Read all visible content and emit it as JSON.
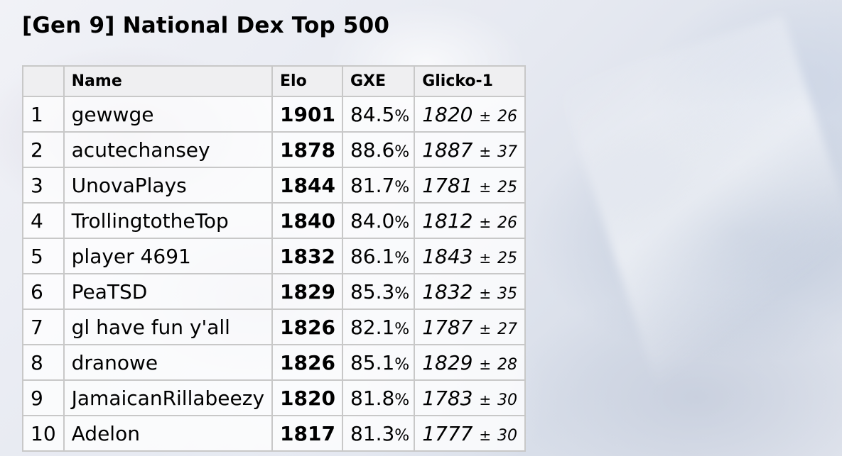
{
  "page_title": "[Gen 9] National Dex Top 500",
  "table": {
    "headers": {
      "rank": "",
      "name": "Name",
      "elo": "Elo",
      "gxe": "GXE",
      "glicko": "Glicko-1"
    },
    "rows": [
      {
        "rank": "1",
        "name": "gewwge",
        "elo": "1901",
        "gxe": "84.5",
        "glicko": "1820",
        "dev": "26"
      },
      {
        "rank": "2",
        "name": "acutechansey",
        "elo": "1878",
        "gxe": "88.6",
        "glicko": "1887",
        "dev": "37"
      },
      {
        "rank": "3",
        "name": "UnovaPlays",
        "elo": "1844",
        "gxe": "81.7",
        "glicko": "1781",
        "dev": "25"
      },
      {
        "rank": "4",
        "name": "TrollingtotheTop",
        "elo": "1840",
        "gxe": "84.0",
        "glicko": "1812",
        "dev": "26"
      },
      {
        "rank": "5",
        "name": "player 4691",
        "elo": "1832",
        "gxe": "86.1",
        "glicko": "1843",
        "dev": "25"
      },
      {
        "rank": "6",
        "name": "PeaTSD",
        "elo": "1829",
        "gxe": "85.3",
        "glicko": "1832",
        "dev": "35"
      },
      {
        "rank": "7",
        "name": "gl have fun y'all",
        "elo": "1826",
        "gxe": "82.1",
        "glicko": "1787",
        "dev": "27"
      },
      {
        "rank": "8",
        "name": "dranowe",
        "elo": "1826",
        "gxe": "85.1",
        "glicko": "1829",
        "dev": "28"
      },
      {
        "rank": "9",
        "name": "JamaicanRillabeezy",
        "elo": "1820",
        "gxe": "81.8",
        "glicko": "1783",
        "dev": "30"
      },
      {
        "rank": "10",
        "name": "Adelon",
        "elo": "1817",
        "gxe": "81.3",
        "glicko": "1777",
        "dev": "30"
      }
    ],
    "percent_sign": "%",
    "plus_minus": "±"
  }
}
